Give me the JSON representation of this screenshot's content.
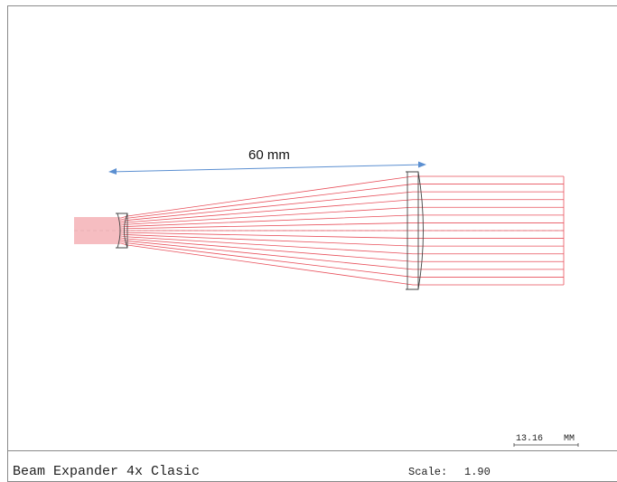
{
  "diagram": {
    "dimension_label": "60 mm",
    "scale_bar_value": "13.16",
    "scale_bar_unit": "MM"
  },
  "footer": {
    "title": "Beam Expander 4x Clasic",
    "scale_label": "Scale:",
    "scale_value": "1.90"
  },
  "colors": {
    "ray": "#e8505b",
    "dimension_arrow": "#5b8fd1",
    "lens_outline": "#444444"
  }
}
